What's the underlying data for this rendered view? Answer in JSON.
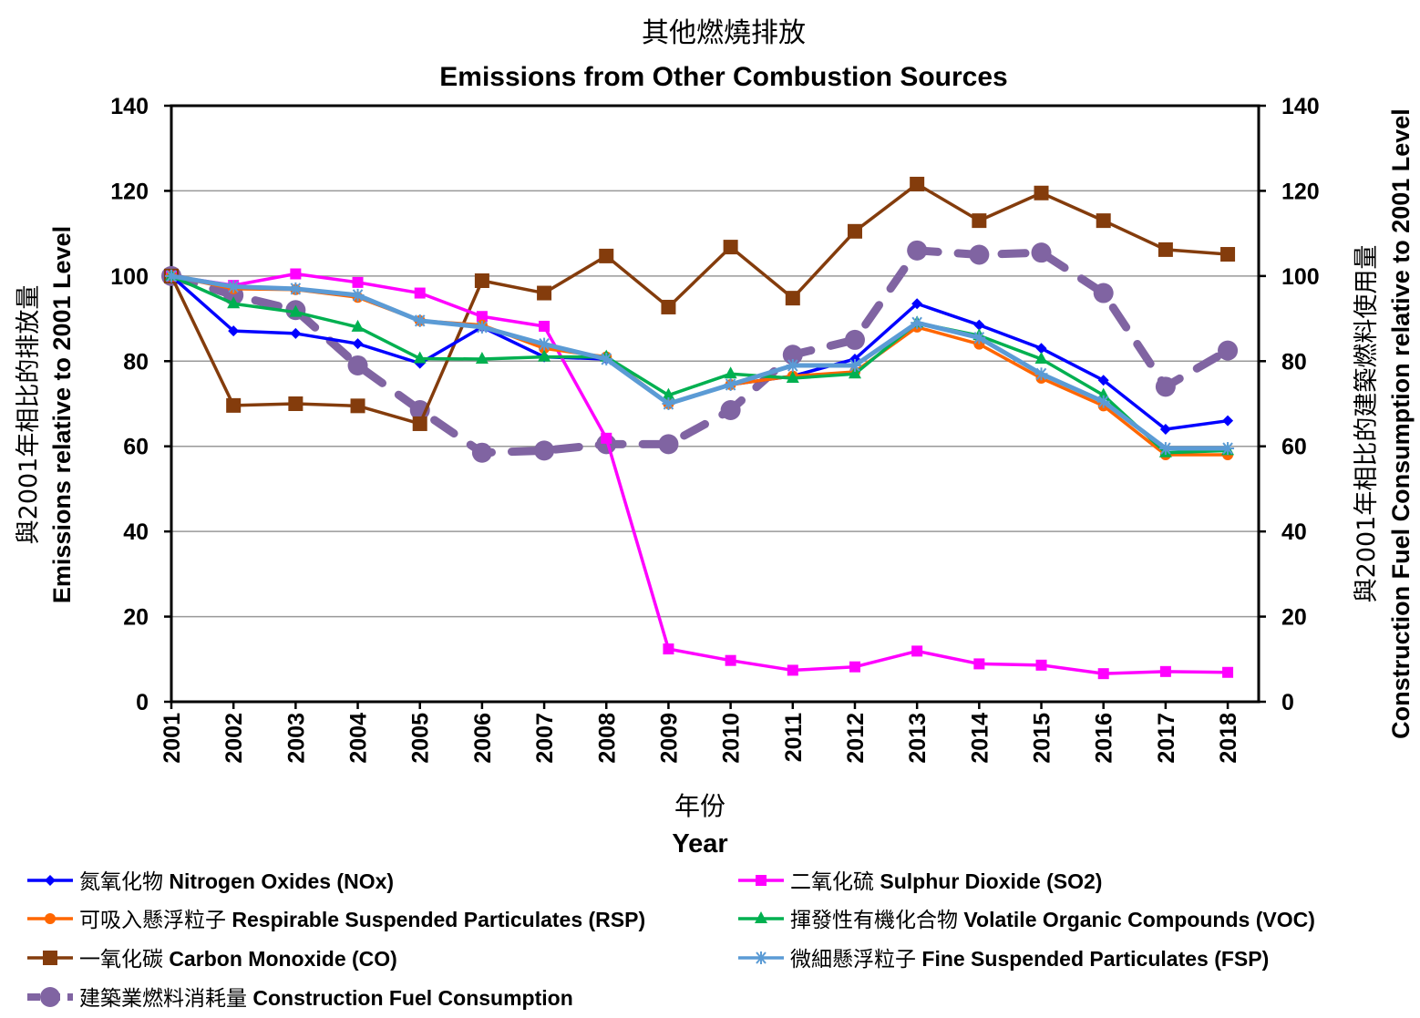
{
  "chart_data": {
    "type": "line",
    "title_zh": "其他燃燒排放",
    "title": "Emissions from Other Combustion Sources",
    "xlabel_zh": "年份",
    "xlabel": "Year",
    "ylabel_zh": "與2001年相比的排放量",
    "ylabel": "Emissions relative to 2001 Level",
    "y2label_zh": "與2001年相比的建築燃料使用量",
    "y2label": "Construction Fuel Consumption relative to 2001 Level",
    "ylim": [
      0,
      140
    ],
    "y2lim": [
      0,
      140
    ],
    "yticks": [
      0,
      20,
      40,
      60,
      80,
      100,
      120,
      140
    ],
    "grid": true,
    "legend_position": "bottom",
    "categories": [
      "2001",
      "2002",
      "2003",
      "2004",
      "2005",
      "2006",
      "2007",
      "2008",
      "2009",
      "2010",
      "2011",
      "2012",
      "2013",
      "2014",
      "2015",
      "2016",
      "2017",
      "2018"
    ],
    "series": [
      {
        "name_zh": "氮氧化物",
        "name": "Nitrogen Oxides (NOx)",
        "color": "#0000FF",
        "marker": "diamond",
        "dash": false,
        "values": [
          100,
          87.1,
          86.5,
          84.1,
          79.5,
          88,
          81,
          80.5,
          70,
          74.5,
          76.5,
          80.5,
          93.5,
          88.5,
          83,
          75.5,
          64,
          66
        ]
      },
      {
        "name_zh": "二氧化硫",
        "name": "Sulphur Dioxide (SO2)",
        "color": "#FF00FF",
        "marker": "square",
        "dash": false,
        "values": [
          100,
          97.8,
          100.5,
          98.5,
          96,
          90.5,
          88.2,
          61.9,
          12.4,
          9.7,
          7.4,
          8.2,
          11.9,
          8.9,
          8.6,
          6.6,
          7.1,
          6.9
        ]
      },
      {
        "name_zh": "可吸入懸浮粒子",
        "name": "Respirable Suspended Particulates (RSP)",
        "color": "#FF6600",
        "marker": "circle",
        "dash": false,
        "values": [
          100,
          97,
          96.8,
          95,
          89.5,
          88.5,
          83,
          81,
          70,
          74.5,
          76.5,
          77.5,
          88,
          84,
          76,
          69.5,
          58,
          58
        ]
      },
      {
        "name_zh": "揮發性有機化合物",
        "name": "Volatile Organic Compounds (VOC)",
        "color": "#00B050",
        "marker": "triangle",
        "dash": false,
        "values": [
          100,
          93.5,
          91.5,
          88,
          80.6,
          80.5,
          81,
          81,
          72,
          77,
          76,
          77,
          89,
          86,
          80.5,
          72,
          58.5,
          59
        ]
      },
      {
        "name_zh": "一氧化碳",
        "name": "Carbon Monoxide (CO)",
        "color": "#843C0C",
        "marker": "bigsquare",
        "dash": false,
        "values": [
          100,
          69.6,
          70,
          69.5,
          65.3,
          98.9,
          96,
          104.7,
          92.7,
          106.8,
          94.8,
          110.5,
          121.6,
          113,
          119.5,
          113,
          106.2,
          105.1
        ]
      },
      {
        "name_zh": "微細懸浮粒子",
        "name": "Fine Suspended Particulates (FSP)",
        "color": "#5B9BD5",
        "marker": "star",
        "dash": false,
        "values": [
          100,
          97.5,
          97,
          95.5,
          89.5,
          88,
          84,
          80.5,
          70,
          74.5,
          79,
          79,
          89,
          85.5,
          77,
          70.5,
          59.5,
          59.5
        ]
      },
      {
        "name_zh": "建築業燃料消耗量",
        "name": "Construction Fuel Consumption",
        "color": "#8064A2",
        "marker": "bigcircle",
        "dash": true,
        "values": [
          100,
          95.5,
          92,
          79,
          68.5,
          58.5,
          59,
          60.5,
          60.5,
          68.5,
          81.5,
          85,
          106,
          105,
          105.5,
          96,
          74,
          82.5
        ]
      }
    ]
  }
}
